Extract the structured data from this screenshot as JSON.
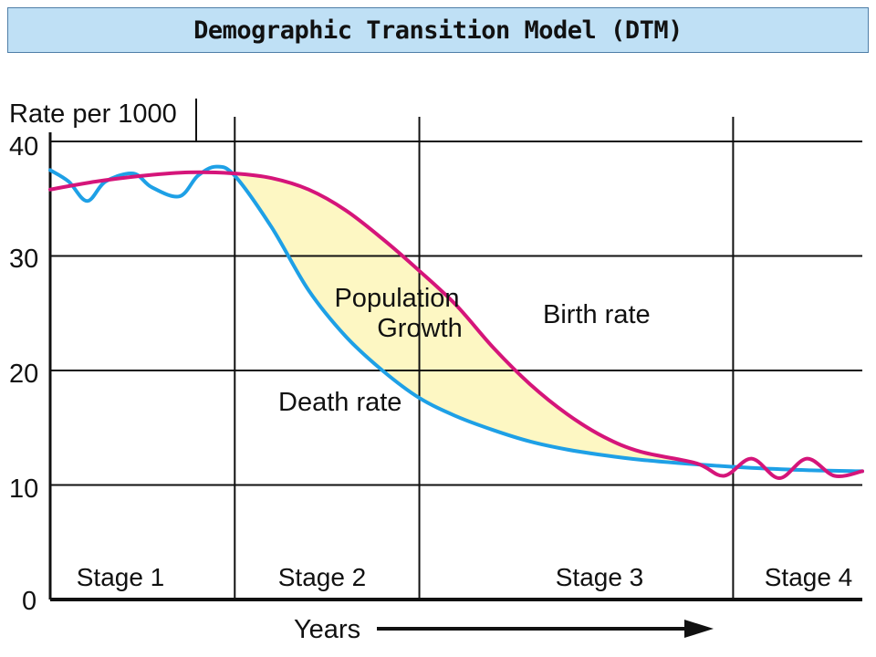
{
  "header": {
    "title": "Demographic Transition Model (DTM)"
  },
  "chart_data": {
    "type": "line",
    "ylabel": "Rate per 1000",
    "xlabel": "Years",
    "ylim": [
      0,
      40
    ],
    "yticks": [
      "40",
      "30",
      "20",
      "10",
      "0"
    ],
    "grid": true,
    "stages": [
      "Stage 1",
      "Stage 2",
      "Stage 3",
      "Stage 4"
    ],
    "annotations": [
      "Population",
      "Growth",
      "Birth rate",
      "Death rate"
    ],
    "series": [
      {
        "name": "Birth rate",
        "color": "#d5157a",
        "x": [
          0.0,
          0.25,
          0.5,
          0.75,
          1.0,
          1.2,
          1.4,
          1.6,
          1.8,
          2.0,
          2.2,
          2.4,
          2.6,
          2.8,
          3.0,
          3.2,
          3.5,
          3.65,
          3.8,
          3.95,
          4.1,
          4.25,
          4.4
        ],
        "values": [
          35.8,
          36.5,
          37.0,
          37.3,
          37.2,
          36.8,
          35.8,
          34.0,
          31.5,
          28.7,
          25.7,
          22.0,
          18.8,
          16.2,
          14.2,
          12.9,
          11.9,
          10.8,
          12.3,
          10.6,
          12.3,
          10.8,
          11.2
        ]
      },
      {
        "name": "Death rate",
        "color": "#1ea0e6",
        "x": [
          0.0,
          0.1,
          0.2,
          0.3,
          0.45,
          0.55,
          0.7,
          0.8,
          0.9,
          1.0,
          1.2,
          1.4,
          1.6,
          1.8,
          2.0,
          2.2,
          2.4,
          2.6,
          2.8,
          3.0,
          3.2,
          3.5,
          3.8,
          4.1,
          4.4
        ],
        "values": [
          37.5,
          36.5,
          34.8,
          36.5,
          37.2,
          36.0,
          35.2,
          37.0,
          37.8,
          37.0,
          32.5,
          27.0,
          23.0,
          20.0,
          17.6,
          16.0,
          14.8,
          13.8,
          13.1,
          12.6,
          12.2,
          11.8,
          11.5,
          11.3,
          11.2
        ]
      }
    ]
  }
}
